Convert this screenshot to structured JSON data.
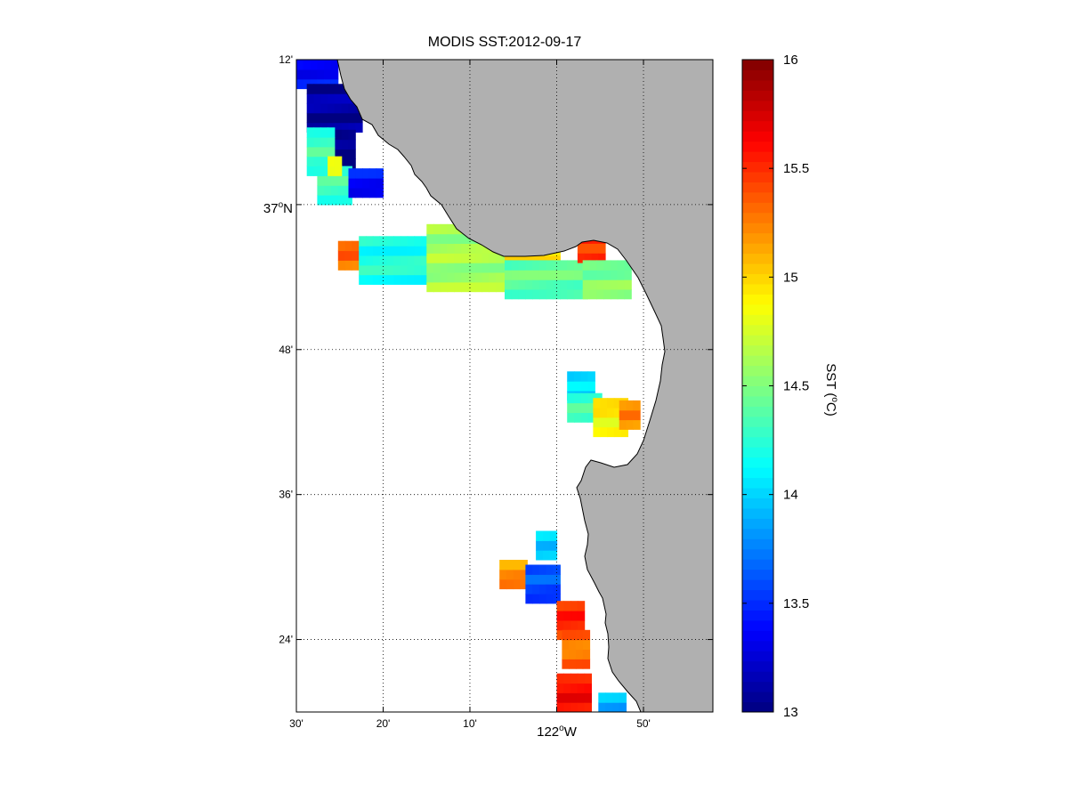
{
  "title": "MODIS SST:2012-09-17",
  "map": {
    "lat_range": [
      36.3,
      37.2
    ],
    "lon_range": [
      -122.5,
      -121.7
    ],
    "lat_ticks": [
      {
        "value": 37.2,
        "label": "12'"
      },
      {
        "value": 37.0,
        "label": "37",
        "sup": "o",
        "suffix": "N"
      },
      {
        "value": 36.8,
        "label": "48'"
      },
      {
        "value": 36.6,
        "label": "36'"
      },
      {
        "value": 36.4,
        "label": "24'"
      }
    ],
    "lon_ticks": [
      {
        "value": -122.5,
        "label": "30'"
      },
      {
        "value": -122.3333,
        "label": "20'"
      },
      {
        "value": -122.1667,
        "label": "10'"
      },
      {
        "value": -122.0,
        "label": "122",
        "sup": "o",
        "suffix": "W"
      },
      {
        "value": -121.8333,
        "label": "50'"
      }
    ],
    "land_color": "#b0b0b0",
    "grid": true
  },
  "colorbar": {
    "min": 13,
    "max": 16,
    "ticks": [
      "16",
      "15.5",
      "15",
      "14.5",
      "14",
      "13.5",
      "13"
    ],
    "tick_values": [
      16,
      15.5,
      15,
      14.5,
      14,
      13.5,
      13
    ],
    "label": "SST (",
    "label_sup": "o",
    "label_end": "C)",
    "colormap": "jet"
  },
  "chart_data": {
    "type": "heatmap",
    "title": "MODIS SST:2012-09-17",
    "xlabel": "",
    "ylabel": "",
    "value_label": "SST (°C)",
    "clim": [
      13,
      16
    ],
    "x_range": [
      -122.5,
      -121.7
    ],
    "y_range": [
      36.3,
      37.2
    ],
    "cell_size_deg": 0.0133,
    "patches": [
      {
        "lon": [
          -122.5,
          -122.43
        ],
        "lat": [
          37.16,
          37.23
        ],
        "sst": 13.4
      },
      {
        "lon": [
          -122.48,
          -122.38
        ],
        "lat": [
          37.1,
          37.16
        ],
        "sst": 13.1
      },
      {
        "lon": [
          -122.44,
          -122.39
        ],
        "lat": [
          37.05,
          37.1
        ],
        "sst": 13.0
      },
      {
        "lon": [
          -122.48,
          -122.44
        ],
        "lat": [
          37.04,
          37.1
        ],
        "sst": 14.3
      },
      {
        "lon": [
          -122.46,
          -122.4
        ],
        "lat": [
          37.0,
          37.05
        ],
        "sst": 14.3
      },
      {
        "lon": [
          -122.4,
          -122.34
        ],
        "lat": [
          37.01,
          37.04
        ],
        "sst": 13.4
      },
      {
        "lon": [
          -122.44,
          -122.42
        ],
        "lat": [
          37.04,
          37.06
        ],
        "sst": 14.9
      },
      {
        "lon": [
          -122.42,
          -122.39
        ],
        "lat": [
          36.91,
          36.94
        ],
        "sst": 15.3
      },
      {
        "lon": [
          -122.38,
          -122.23
        ],
        "lat": [
          36.89,
          36.95
        ],
        "sst": 14.2
      },
      {
        "lon": [
          -122.25,
          -122.1
        ],
        "lat": [
          36.88,
          36.96
        ],
        "sst": 14.6
      },
      {
        "lon": [
          -122.1,
          -122.0
        ],
        "lat": [
          36.89,
          36.95
        ],
        "sst": 14.9
      },
      {
        "lon": [
          -122.1,
          -121.95
        ],
        "lat": [
          36.87,
          36.91
        ],
        "sst": 14.4
      },
      {
        "lon": [
          -121.96,
          -121.92
        ],
        "lat": [
          36.92,
          36.96
        ],
        "sst": 15.5
      },
      {
        "lon": [
          -121.95,
          -121.86
        ],
        "lat": [
          36.87,
          36.92
        ],
        "sst": 14.5
      },
      {
        "lon": [
          -121.98,
          -121.94
        ],
        "lat": [
          36.73,
          36.76
        ],
        "sst": 14.0
      },
      {
        "lon": [
          -121.98,
          -121.92
        ],
        "lat": [
          36.7,
          36.73
        ],
        "sst": 14.3
      },
      {
        "lon": [
          -121.93,
          -121.87
        ],
        "lat": [
          36.68,
          36.72
        ],
        "sst": 14.9
      },
      {
        "lon": [
          -121.88,
          -121.85
        ],
        "lat": [
          36.69,
          36.72
        ],
        "sst": 15.2
      },
      {
        "lon": [
          -122.04,
          -122.01
        ],
        "lat": [
          36.51,
          36.54
        ],
        "sst": 14.0
      },
      {
        "lon": [
          -122.11,
          -122.07
        ],
        "lat": [
          36.47,
          36.5
        ],
        "sst": 15.2
      },
      {
        "lon": [
          -122.06,
          -122.0
        ],
        "lat": [
          36.45,
          36.49
        ],
        "sst": 13.6
      },
      {
        "lon": [
          -122.0,
          -121.96
        ],
        "lat": [
          36.4,
          36.45
        ],
        "sst": 15.5
      },
      {
        "lon": [
          -121.99,
          -121.94
        ],
        "lat": [
          36.36,
          36.4
        ],
        "sst": 15.3
      },
      {
        "lon": [
          -122.0,
          -121.94
        ],
        "lat": [
          36.3,
          36.35
        ],
        "sst": 15.6
      },
      {
        "lon": [
          -121.92,
          -121.88
        ],
        "lat": [
          36.3,
          36.32
        ],
        "sst": 13.9
      }
    ]
  }
}
